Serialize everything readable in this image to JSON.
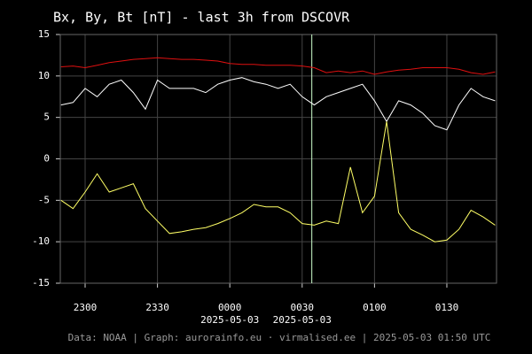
{
  "chart_data": {
    "type": "line",
    "title": "Bx, By, Bt [nT] - last 3h from DSCOVR",
    "footer": "Data: NOAA | Graph: aurorainfo.eu · virmalised.ee | 2025-05-03 01:50 UTC",
    "x": [
      -70,
      -65,
      -60,
      -55,
      -50,
      -45,
      -40,
      -35,
      -30,
      -25,
      -20,
      -15,
      -10,
      -5,
      0,
      5,
      10,
      15,
      20,
      25,
      30,
      35,
      40,
      45,
      50,
      55,
      60,
      65,
      70,
      75,
      80,
      85,
      90,
      95,
      100,
      105,
      110
    ],
    "series": [
      {
        "color": "#e01010",
        "values": [
          11.1,
          11.2,
          11.0,
          11.3,
          11.6,
          11.8,
          12.0,
          12.1,
          12.2,
          12.1,
          12.0,
          12.0,
          11.9,
          11.8,
          11.5,
          11.4,
          11.4,
          11.3,
          11.3,
          11.3,
          11.2,
          11.0,
          10.4,
          10.6,
          10.4,
          10.6,
          10.2,
          10.5,
          10.7,
          10.8,
          11.0,
          11.0,
          11.0,
          10.8,
          10.4,
          10.2,
          10.5
        ]
      },
      {
        "color": "#ffffff",
        "values": [
          6.5,
          6.8,
          8.5,
          7.5,
          9.0,
          9.5,
          8.0,
          6.0,
          9.5,
          8.5,
          8.5,
          8.5,
          8.0,
          9.0,
          9.5,
          9.8,
          9.3,
          9.0,
          8.5,
          9.0,
          7.5,
          6.5,
          7.5,
          8.0,
          8.5,
          9.0,
          7.0,
          4.5,
          7.0,
          6.5,
          5.5,
          4.0,
          3.5,
          6.5,
          8.5,
          7.5,
          7.0
        ]
      },
      {
        "color": "#ffff66",
        "values": [
          -5.0,
          -6.0,
          -4.0,
          -1.8,
          -4.0,
          -3.5,
          -3.0,
          -6.0,
          -7.5,
          -9.0,
          -8.8,
          -8.5,
          -8.3,
          -7.8,
          -7.2,
          -6.5,
          -5.5,
          -5.8,
          -5.8,
          -6.5,
          -7.8,
          -8.0,
          -7.5,
          -7.8,
          -1.0,
          -6.5,
          -4.5,
          4.5,
          -6.5,
          -8.5,
          -9.2,
          -10.0,
          -9.8,
          -8.5,
          -6.2,
          -7.0,
          -8.0
        ]
      }
    ],
    "xlim": [
      -70.3,
      110.6
    ],
    "xticks": [
      {
        "value": -60,
        "label": "2300"
      },
      {
        "value": -30,
        "label": "2330"
      },
      {
        "value": 0,
        "label": "0000"
      },
      {
        "value": 30,
        "label": "0030"
      },
      {
        "value": 60,
        "label": "0100"
      },
      {
        "value": 90,
        "label": "0130"
      }
    ],
    "x_date_labels": [
      {
        "value": 0,
        "label": "2025-05-03"
      },
      {
        "value": 30,
        "label": "2025-05-03"
      }
    ],
    "ylim": [
      -15,
      15
    ],
    "yticks": [
      -15,
      -10,
      -5,
      0,
      5,
      10,
      15
    ],
    "grid": true,
    "vline": {
      "x": 34,
      "color": "#ccffcc"
    }
  }
}
